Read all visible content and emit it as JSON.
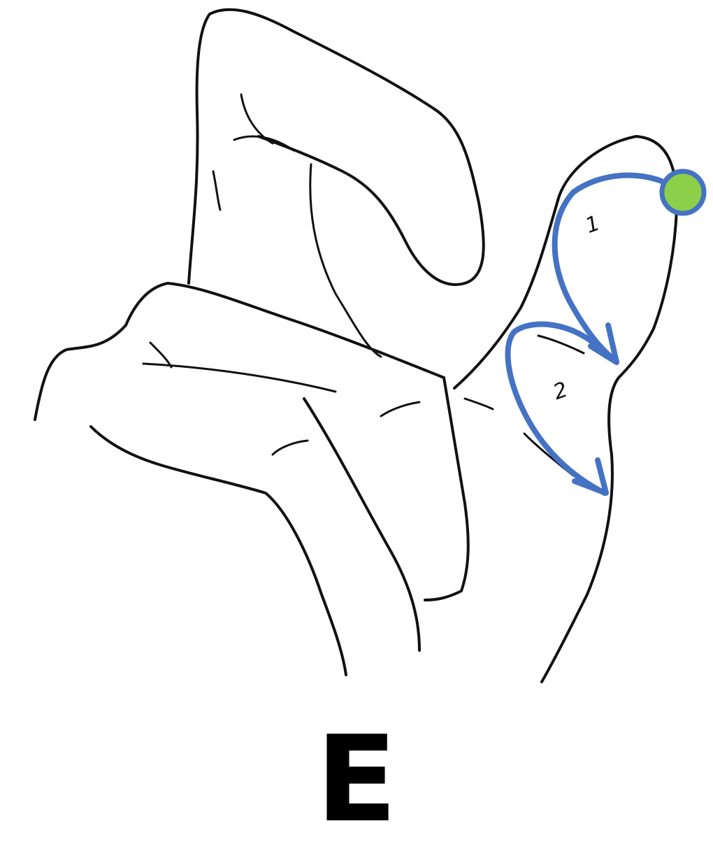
{
  "letter": "E",
  "steps": [
    {
      "number": "1"
    },
    {
      "number": "2"
    }
  ],
  "colors": {
    "motion_path": "#4472C4",
    "start_dot": "#8CD04A",
    "start_dot_ring": "#4472C4",
    "outline": "#111111"
  },
  "icons": {
    "start_marker": "green-circle",
    "direction": "arrow-head"
  }
}
